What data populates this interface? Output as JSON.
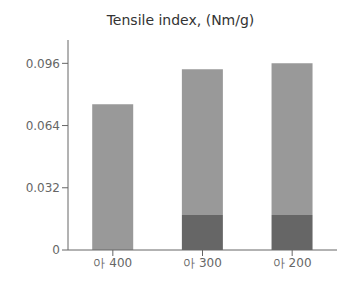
{
  "chart_data": {
    "type": "bar",
    "title": "Tensile index, (Nm/g)",
    "categories": [
      "아 400",
      "아 300",
      "아 200"
    ],
    "stacked": true,
    "series": [
      {
        "color": "#666666",
        "values": [
          0.0,
          0.018,
          0.018
        ]
      },
      {
        "color": "#999999",
        "values": [
          0.075,
          0.075,
          0.078
        ]
      }
    ],
    "ylim": [
      0,
      0.108
    ],
    "yticks": [
      0,
      0.032,
      0.064,
      0.096
    ],
    "grid": false
  }
}
